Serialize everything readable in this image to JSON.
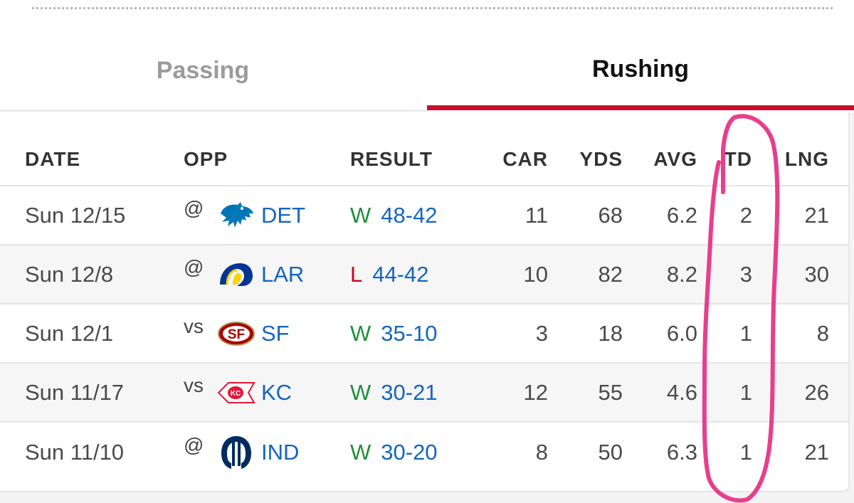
{
  "tabs": [
    {
      "label": "Passing"
    },
    {
      "label": "Rushing"
    }
  ],
  "colors": {
    "accent": "#c8102e",
    "win": "#1f8f3a",
    "loss": "#d0021b",
    "link": "#1565c0",
    "annotation": "#e83e8c"
  },
  "table": {
    "headers": {
      "date": "DATE",
      "opp": "OPP",
      "result": "RESULT",
      "car": "CAR",
      "yds": "YDS",
      "avg": "AVG",
      "td": "TD",
      "lng": "LNG"
    },
    "rows": [
      {
        "date": "Sun 12/15",
        "vsat": "@",
        "team": "DET",
        "logo": "lions-logo-icon",
        "outcome": "W",
        "score": "48-42",
        "car": "11",
        "yds": "68",
        "avg": "6.2",
        "td": "2",
        "lng": "21"
      },
      {
        "date": "Sun 12/8",
        "vsat": "@",
        "team": "LAR",
        "logo": "rams-logo-icon",
        "outcome": "L",
        "score": "44-42",
        "car": "10",
        "yds": "82",
        "avg": "8.2",
        "td": "3",
        "lng": "30"
      },
      {
        "date": "Sun 12/1",
        "vsat": "vs",
        "team": "SF",
        "logo": "49ers-logo-icon",
        "outcome": "W",
        "score": "35-10",
        "car": "3",
        "yds": "18",
        "avg": "6.0",
        "td": "1",
        "lng": "8"
      },
      {
        "date": "Sun 11/17",
        "vsat": "vs",
        "team": "KC",
        "logo": "chiefs-logo-icon",
        "outcome": "W",
        "score": "30-21",
        "car": "12",
        "yds": "55",
        "avg": "4.6",
        "td": "1",
        "lng": "26"
      },
      {
        "date": "Sun 11/10",
        "vsat": "@",
        "team": "IND",
        "logo": "colts-logo-icon",
        "outcome": "W",
        "score": "30-20",
        "car": "8",
        "yds": "50",
        "avg": "6.3",
        "td": "1",
        "lng": "21"
      }
    ]
  }
}
